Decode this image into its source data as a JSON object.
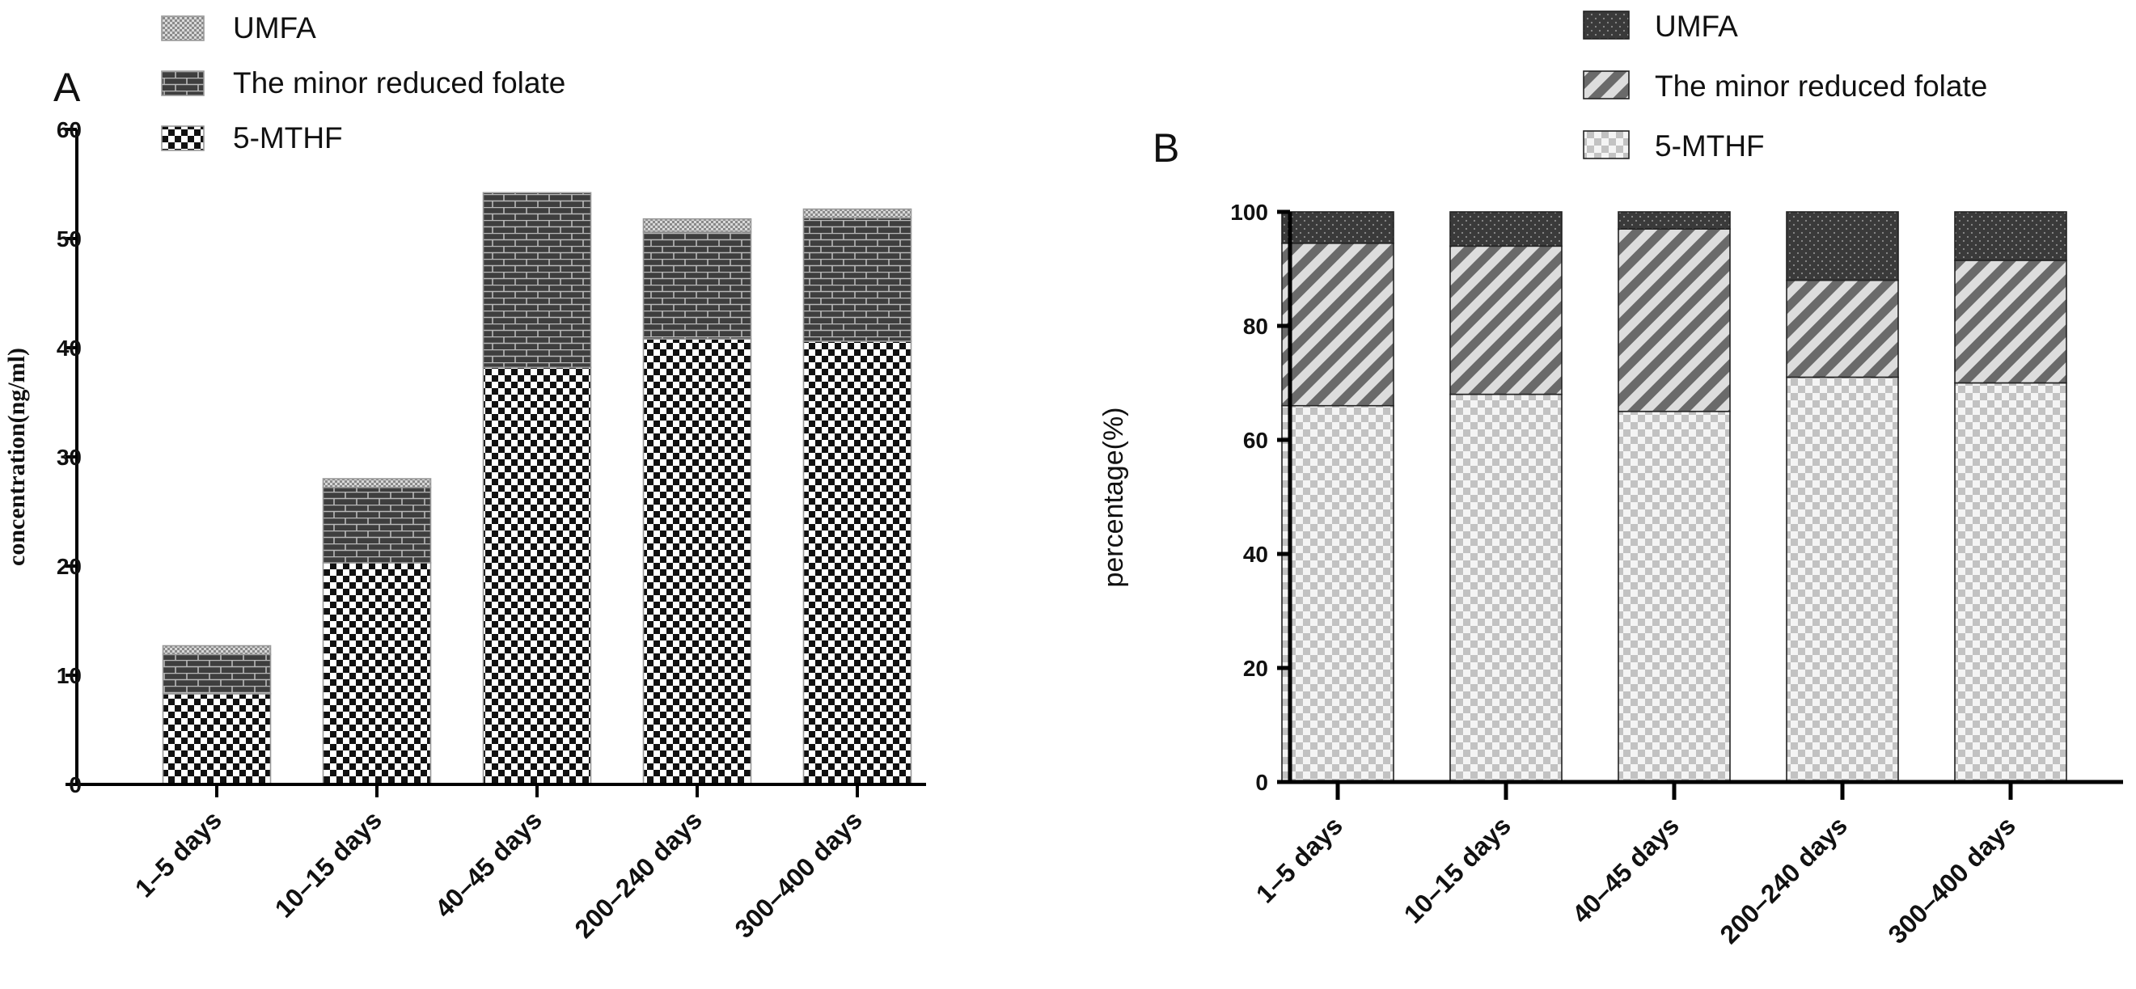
{
  "chart_data": [
    {
      "panel": "A",
      "type": "bar",
      "stacked": true,
      "panel_label": "A",
      "ylabel": "concentration(ng/ml)",
      "xlabel": "",
      "ylim": [
        0,
        60
      ],
      "yticks": [
        0,
        10,
        20,
        30,
        40,
        50,
        60
      ],
      "categories": [
        "1–5 days",
        "10–15 days",
        "40–45 days",
        "200–240 days",
        "300–400 days"
      ],
      "series": [
        {
          "name": "5-MTHF",
          "values": [
            8.3,
            20.3,
            38.2,
            40.8,
            40.6
          ],
          "pattern": "checker"
        },
        {
          "name": "The minor reduced folate",
          "values": [
            3.6,
            6.9,
            16.0,
            9.8,
            11.3
          ],
          "pattern": "brick"
        },
        {
          "name": "UMFA",
          "values": [
            0.8,
            0.8,
            0.0,
            1.2,
            0.8
          ],
          "pattern": "dots-light"
        }
      ],
      "legend_order": [
        "UMFA",
        "The minor reduced folate",
        "5-MTHF"
      ],
      "legend_position": "top-left"
    },
    {
      "panel": "B",
      "type": "bar",
      "stacked": true,
      "panel_label": "B",
      "ylabel": "percentage(%)",
      "xlabel": "",
      "ylim": [
        0,
        100
      ],
      "yticks": [
        0,
        20,
        40,
        60,
        80,
        100
      ],
      "categories": [
        "1–5 days",
        "10–15 days",
        "40–45 days",
        "200–240 days",
        "300–400 days"
      ],
      "series": [
        {
          "name": "5-MTHF",
          "values": [
            66,
            68,
            65,
            71,
            70
          ],
          "pattern": "light-checker"
        },
        {
          "name": "The minor reduced folate",
          "values": [
            28.5,
            26,
            32,
            17,
            21.5
          ],
          "pattern": "diagonal"
        },
        {
          "name": "UMFA",
          "values": [
            5.5,
            6,
            3,
            12,
            8.5
          ],
          "pattern": "dark-dots"
        }
      ],
      "legend_order": [
        "UMFA",
        "The minor reduced folate",
        "5-MTHF"
      ],
      "legend_position": "top-right"
    }
  ]
}
